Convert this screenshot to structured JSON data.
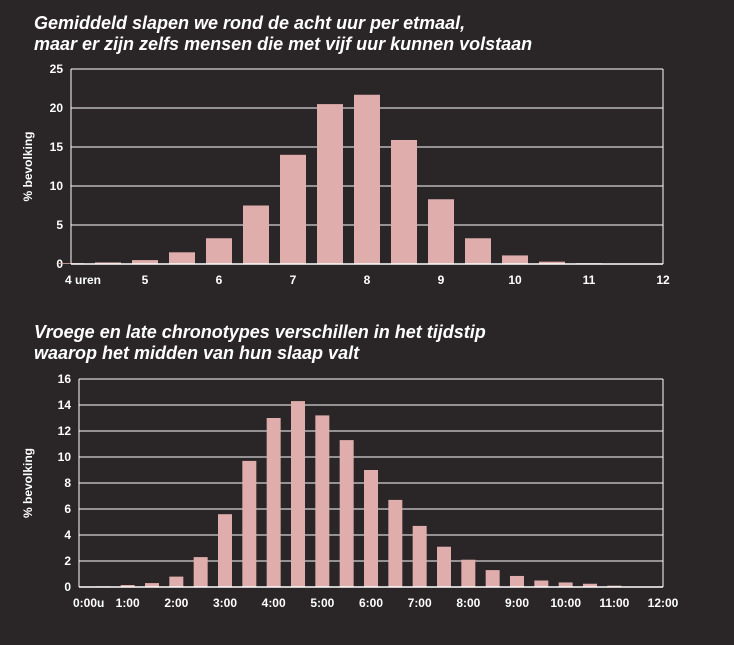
{
  "chart_data": [
    {
      "type": "bar",
      "title": [
        "Gemiddeld slapen we rond de acht uur per etmaal,",
        "maar er zijn zelfs mensen die met vijf uur kunnen volstaan"
      ],
      "ylabel": "% bevolking",
      "xlabel": "",
      "ylim": [
        0,
        25
      ],
      "yticks": [
        "0",
        "5",
        "10",
        "15",
        "20",
        "25"
      ],
      "xlim": [
        4,
        12
      ],
      "xticks": [
        "4 uren",
        "5",
        "6",
        "7",
        "8",
        "9",
        "10",
        "11",
        "12"
      ],
      "x": [
        4.0,
        4.5,
        5.0,
        5.5,
        6.0,
        6.5,
        7.0,
        7.5,
        8.0,
        8.5,
        9.0,
        9.5,
        10.0,
        10.5,
        11.0
      ],
      "values": [
        0.1,
        0.2,
        0.5,
        1.5,
        3.3,
        7.5,
        14.0,
        20.5,
        21.7,
        15.9,
        8.3,
        3.3,
        1.1,
        0.3,
        0.1
      ],
      "grid": true,
      "colors": {
        "bar": "#dfaeac",
        "grid": "#ffffff",
        "background": "#2a2526"
      }
    },
    {
      "type": "bar",
      "title": [
        "Vroege en late chronotypes verschillen in het tijdstip",
        "waarop het midden van hun slaap valt"
      ],
      "ylabel": "% bevolking",
      "xlabel": "",
      "ylim": [
        0,
        16
      ],
      "yticks": [
        "0",
        "2",
        "4",
        "6",
        "8",
        "10",
        "12",
        "14",
        "16"
      ],
      "xlim": [
        0,
        12
      ],
      "xticks": [
        "0:00u",
        "1:00",
        "2:00",
        "3:00",
        "4:00",
        "5:00",
        "6:00",
        "7:00",
        "8:00",
        "9:00",
        "10:00",
        "11:00",
        "12:00"
      ],
      "x": [
        0.5,
        1.0,
        1.5,
        2.0,
        2.5,
        3.0,
        3.5,
        4.0,
        4.5,
        5.0,
        5.5,
        6.0,
        6.5,
        7.0,
        7.5,
        8.0,
        8.5,
        9.0,
        9.5,
        10.0,
        10.5,
        11.0
      ],
      "values": [
        0.05,
        0.15,
        0.3,
        0.8,
        2.3,
        5.6,
        9.7,
        13.0,
        14.3,
        13.2,
        11.3,
        9.0,
        6.7,
        4.7,
        3.1,
        2.1,
        1.3,
        0.85,
        0.5,
        0.35,
        0.25,
        0.1
      ],
      "grid": true,
      "colors": {
        "bar": "#dfaeac",
        "grid": "#ffffff",
        "background": "#2a2526"
      }
    }
  ]
}
